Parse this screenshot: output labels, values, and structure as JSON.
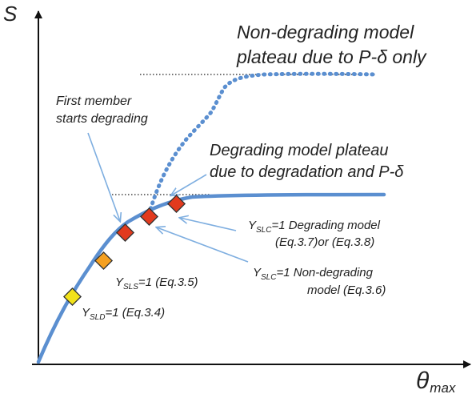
{
  "axes": {
    "y_label": "S",
    "x_label_main": "θ",
    "x_label_sub": "max"
  },
  "annotations": {
    "non_degrading_line1": "Non-degrading model",
    "non_degrading_line2_prefix": "plateau due to P-",
    "non_degrading_line2_delta": "δ",
    "non_degrading_line2_suffix": " only",
    "degrading_line1": "Degrading model plateau",
    "degrading_line2_prefix": "due to degradation and P-",
    "degrading_line2_delta": "δ",
    "first_member_line1": "First member",
    "first_member_line2": "starts degrading"
  },
  "markers": {
    "sld": {
      "Y": "Y",
      "sub": "SLD",
      "text": "=1 (Eq.3.4)",
      "color": "#f2e21a"
    },
    "sls": {
      "Y": "Y",
      "sub": "SLS",
      "text": "=1 (Eq.3.5)",
      "color": "#f5a020"
    },
    "slc_nondeg": {
      "Y": "Y",
      "sub": "SLC",
      "text1": "=1 Non-degrading",
      "text2": "model (Eq.3.6)",
      "color": "#e23a1e"
    },
    "slc_deg": {
      "Y": "Y",
      "sub": "SLC",
      "text1": "=1 Degrading model",
      "text2": "(Eq.3.7)or (Eq.3.8)",
      "color": "#e23a1e"
    }
  },
  "colors": {
    "curve": "#5b8fd0",
    "arrow": "#7eaee0",
    "axis": "#111111",
    "dotted_ref": "#444444"
  }
}
